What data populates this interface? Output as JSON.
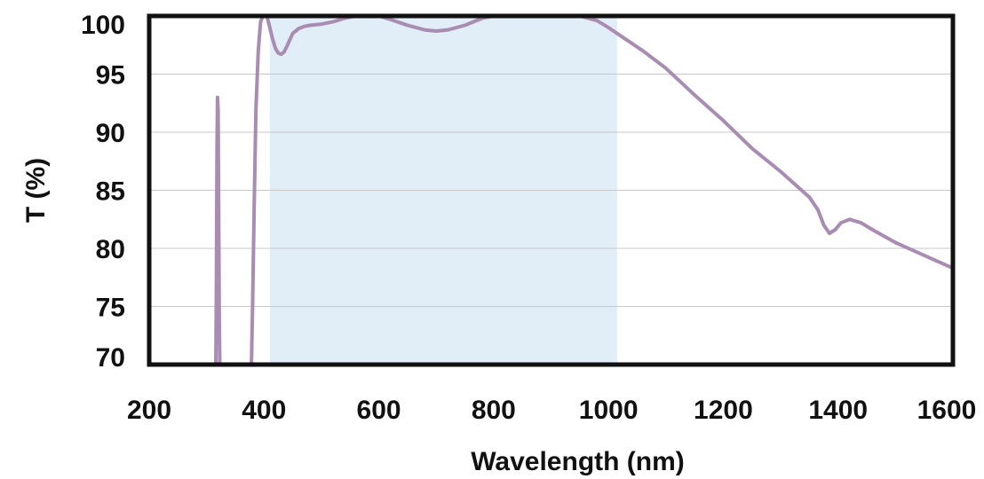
{
  "chart_data": {
    "type": "line",
    "title": "",
    "xlabel": "Wavelength (nm)",
    "ylabel": "T (%)",
    "xlim": [
      200,
      1600
    ],
    "ylim": [
      70,
      100
    ],
    "xticks": [
      200,
      400,
      600,
      800,
      1000,
      1200,
      1400,
      1600
    ],
    "yticks": [
      70,
      75,
      80,
      85,
      90,
      95,
      100
    ],
    "grid": "horizontal",
    "highlight_band": {
      "x_start": 410,
      "x_end": 1015,
      "color": "#e1edf7"
    },
    "colors": {
      "line": "#a98cb1",
      "frame": "#111111",
      "grid": "#c8c8c8"
    },
    "series": [
      {
        "segments": [
          {
            "x": [
              316,
              317,
              318,
              319,
              320,
              321,
              322,
              323,
              324,
              325
            ],
            "y": [
              69,
              76,
              88,
              93,
              92,
              84,
              74,
              69,
              69,
              69
            ]
          },
          {
            "x": [
              378,
              380,
              383,
              386,
              390,
              394,
              398,
              402,
              404,
              406,
              410,
              415,
              420,
              425,
              430,
              435,
              440,
              450,
              460,
              470,
              480,
              500,
              520,
              540,
              560,
              580,
              600,
              620,
              650,
              680,
              700,
              720,
              750,
              780,
              800,
              820,
              850,
              880,
              900,
              920,
              950,
              980,
              1000,
              1030,
              1060,
              1100,
              1150,
              1200,
              1250,
              1300,
              1350,
              1365,
              1375,
              1385,
              1395,
              1405,
              1420,
              1440,
              1460,
              1500,
              1550,
              1600
            ],
            "y": [
              69,
              75,
              84,
              92,
              97,
              99.5,
              100.3,
              100.4,
              100.2,
              99.8,
              99.0,
              98.0,
              97.2,
              96.8,
              96.7,
              96.9,
              97.4,
              98.5,
              98.9,
              99.1,
              99.2,
              99.3,
              99.5,
              99.8,
              100.0,
              100.1,
              100.0,
              99.7,
              99.2,
              98.8,
              98.7,
              98.8,
              99.2,
              99.8,
              100.2,
              100.6,
              100.9,
              101.0,
              101.0,
              100.8,
              100.3,
              99.6,
              99.0,
              98.0,
              97.0,
              95.5,
              93.2,
              91.0,
              88.6,
              86.6,
              84.4,
              83.3,
              82.0,
              81.3,
              81.6,
              82.2,
              82.5,
              82.2,
              81.6,
              80.5,
              79.4,
              78.3
            ]
          }
        ]
      }
    ]
  }
}
